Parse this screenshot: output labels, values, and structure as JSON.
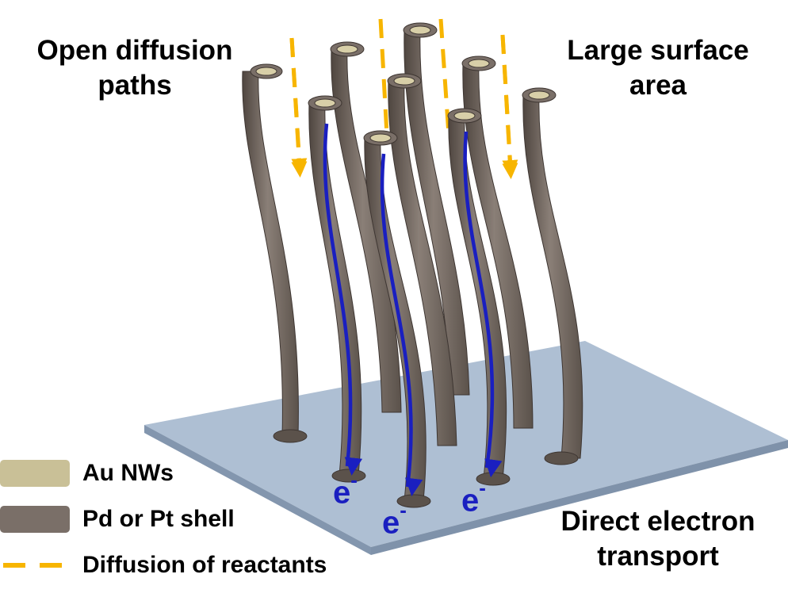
{
  "labels": {
    "open_diffusion": [
      "Open diffusion",
      "paths"
    ],
    "large_surface": [
      "Large surface",
      "area"
    ],
    "direct_transport": [
      "Direct electron",
      "transport"
    ]
  },
  "electron": {
    "symbol": "e",
    "charge": "-"
  },
  "legend": [
    {
      "text": "Au NWs",
      "kind": "swatch",
      "color": "#c9c097"
    },
    {
      "text": "Pd or Pt shell",
      "kind": "swatch",
      "color": "#7a6f68"
    },
    {
      "text": "Diffusion of reactants",
      "kind": "dash",
      "color": "#f7b500"
    }
  ],
  "colors": {
    "substrate_top": "#aebfd3",
    "substrate_edge": "#8396ae",
    "wire_shell": "#7a6f68",
    "wire_core": "#d8cfa8",
    "electron_arrow": "#1a1fc0",
    "diffusion_arrow": "#f7b500"
  }
}
